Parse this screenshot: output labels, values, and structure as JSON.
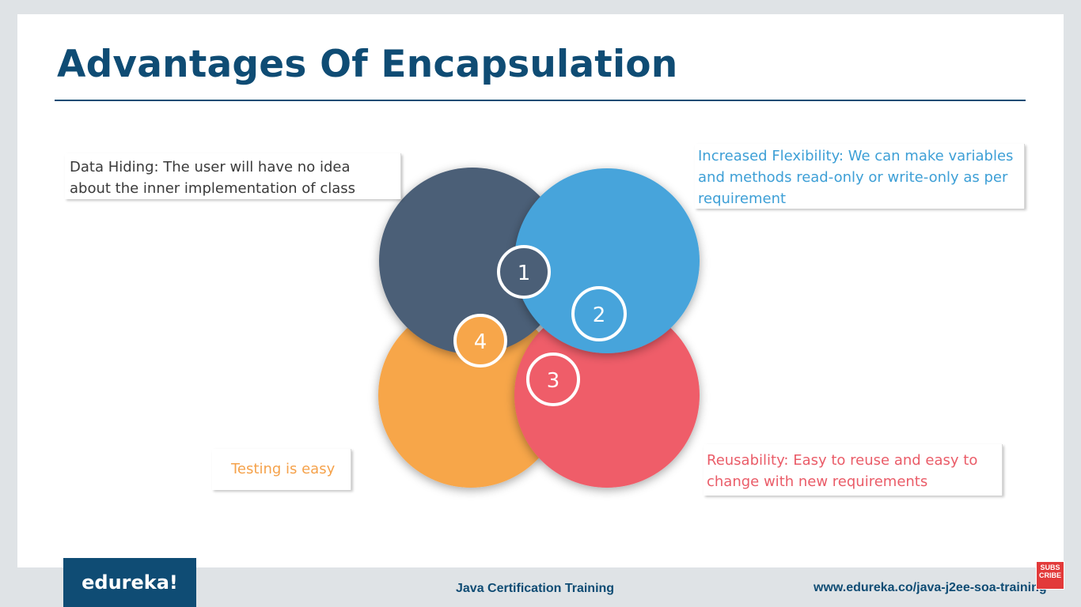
{
  "slide": {
    "title": "Advantages Of Encapsulation"
  },
  "diagram": {
    "circles": [
      {
        "number": "1",
        "color": "#4b5f77"
      },
      {
        "number": "2",
        "color": "#47a4db"
      },
      {
        "number": "3",
        "color": "#ef5d69"
      },
      {
        "number": "4",
        "color": "#f7a64a"
      }
    ],
    "callouts": {
      "data_hiding": [
        "Data Hiding: The user will have no idea",
        "about the inner implementation of class"
      ],
      "flexibility": [
        "Increased Flexibility: We can make variables",
        "and methods read-only or write-only as per",
        "requirement"
      ],
      "reusability": [
        "Reusability: Easy to reuse and easy to",
        "change with new requirements"
      ],
      "testing": [
        "Testing is easy"
      ]
    }
  },
  "footer": {
    "logo": "edureka!",
    "course": "Java Certification Training",
    "url": "www.edureka.co/java-j2ee-soa-training",
    "subscribe": [
      "SUBS",
      "CRIBE"
    ]
  },
  "colors": {
    "title": "#0f4c74",
    "background": "#dfe3e6"
  }
}
